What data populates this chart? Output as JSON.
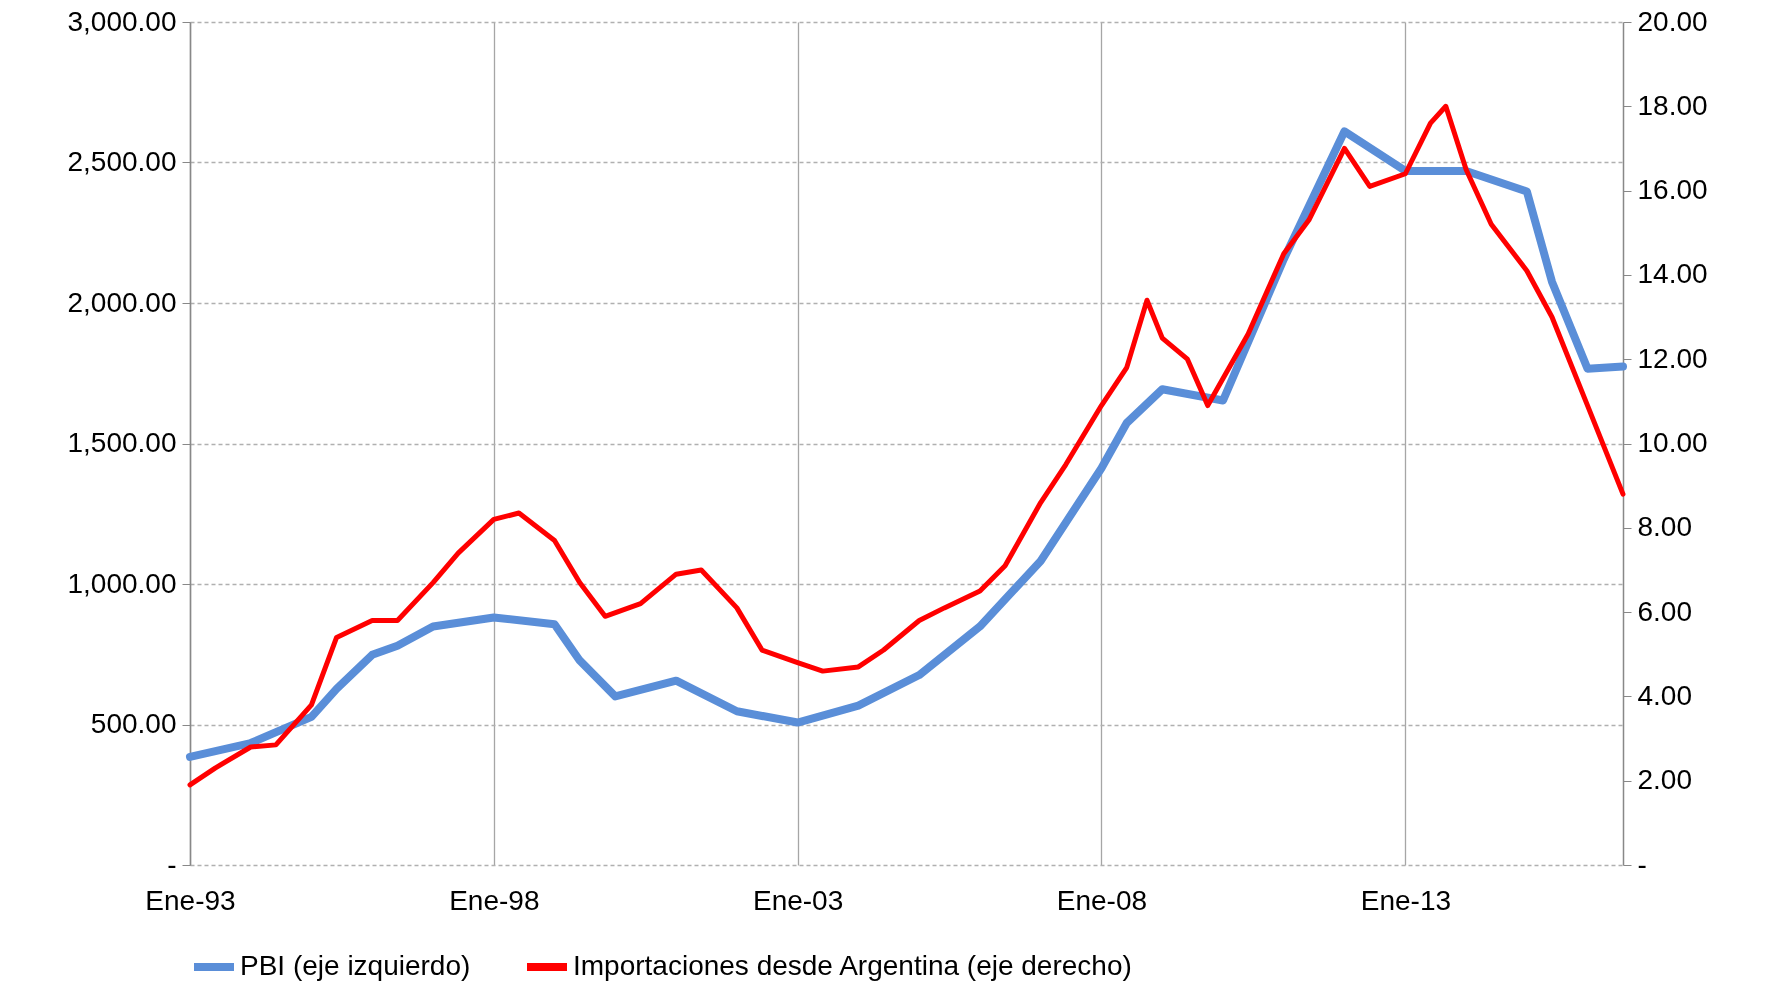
{
  "chart_data": {
    "type": "line",
    "xlim": [
      "1993-01",
      "2016-08"
    ],
    "xticks": [
      {
        "value": "1993-01",
        "label": "Ene-93"
      },
      {
        "value": "1998-01",
        "label": "Ene-98"
      },
      {
        "value": "2003-01",
        "label": "Ene-03"
      },
      {
        "value": "2008-01",
        "label": "Ene-08"
      },
      {
        "value": "2013-01",
        "label": "Ene-13"
      }
    ],
    "ylim": [
      0,
      3000
    ],
    "yticks": [
      {
        "value": 0,
        "label": "-"
      },
      {
        "value": 500,
        "label": "500.00"
      },
      {
        "value": 1000,
        "label": "1,000.00"
      },
      {
        "value": 1500,
        "label": "1,500.00"
      },
      {
        "value": 2000,
        "label": "2,000.00"
      },
      {
        "value": 2500,
        "label": "2,500.00"
      },
      {
        "value": 3000,
        "label": "3,000.00"
      }
    ],
    "y2lim": [
      0,
      20
    ],
    "y2ticks": [
      {
        "value": 0,
        "label": "-"
      },
      {
        "value": 2,
        "label": "2.00"
      },
      {
        "value": 4,
        "label": "4.00"
      },
      {
        "value": 6,
        "label": "6.00"
      },
      {
        "value": 8,
        "label": "8.00"
      },
      {
        "value": 10,
        "label": "10.00"
      },
      {
        "value": 12,
        "label": "12.00"
      },
      {
        "value": 14,
        "label": "14.00"
      },
      {
        "value": 16,
        "label": "16.00"
      },
      {
        "value": 18,
        "label": "18.00"
      },
      {
        "value": 20,
        "label": "20.00"
      }
    ],
    "grid": true,
    "legend": "bottom",
    "series": [
      {
        "name": "PBI (eje izquierdo)",
        "color": "#5a8ed8",
        "x": [
          "1993-01",
          "1994-01",
          "1995-01",
          "1995-06",
          "1996-01",
          "1996-06",
          "1997-01",
          "1998-01",
          "1999-01",
          "1999-06",
          "2000-01",
          "2001-01",
          "2002-01",
          "2003-01",
          "2004-01",
          "2005-01",
          "2006-01",
          "2007-01",
          "2008-01",
          "2008-06",
          "2009-01",
          "2010-01",
          "2011-01",
          "2012-01",
          "2013-01",
          "2014-01",
          "2015-01",
          "2015-06",
          "2016-01",
          "2016-08"
        ],
        "values": [
          385,
          434,
          527,
          627,
          748,
          780,
          849,
          881,
          857,
          728,
          600,
          656,
          547,
          507,
          567,
          676,
          849,
          1082,
          1412,
          1573,
          1693,
          1653,
          2156,
          2611,
          2470,
          2470,
          2397,
          2076,
          1766,
          1774
        ]
      },
      {
        "name": "Importaciones desde Argentina (eje derecho)",
        "color": "#ff0000",
        "axis": "y2",
        "x": [
          "1993-01",
          "1993-06",
          "1994-01",
          "1994-06",
          "1995-01",
          "1995-06",
          "1996-01",
          "1996-06",
          "1997-01",
          "1997-06",
          "1998-01",
          "1998-06",
          "1999-01",
          "1999-06",
          "1999-11",
          "2000-06",
          "2001-01",
          "2001-06",
          "2002-01",
          "2002-06",
          "2003-01",
          "2003-06",
          "2004-01",
          "2004-06",
          "2005-01",
          "2005-06",
          "2006-01",
          "2006-06",
          "2007-01",
          "2007-06",
          "2008-01",
          "2008-06",
          "2008-10",
          "2009-01",
          "2009-06",
          "2009-10",
          "2010-06",
          "2011-01",
          "2011-06",
          "2012-01",
          "2012-06",
          "2013-01",
          "2013-06",
          "2013-09",
          "2014-01",
          "2014-06",
          "2015-01",
          "2015-06",
          "2016-01",
          "2016-08"
        ],
        "values": [
          1.9,
          2.3,
          2.8,
          2.85,
          3.8,
          5.4,
          5.8,
          5.8,
          6.7,
          7.4,
          8.2,
          8.35,
          7.7,
          6.7,
          5.9,
          6.2,
          6.9,
          7.0,
          6.1,
          5.1,
          4.8,
          4.6,
          4.7,
          5.1,
          5.8,
          6.1,
          6.5,
          7.1,
          8.6,
          9.5,
          10.9,
          11.8,
          13.4,
          12.5,
          12.0,
          10.9,
          12.6,
          14.5,
          15.3,
          17.0,
          16.1,
          16.4,
          17.6,
          18.0,
          16.5,
          15.2,
          14.1,
          13.0,
          10.9,
          8.8
        ]
      }
    ]
  }
}
